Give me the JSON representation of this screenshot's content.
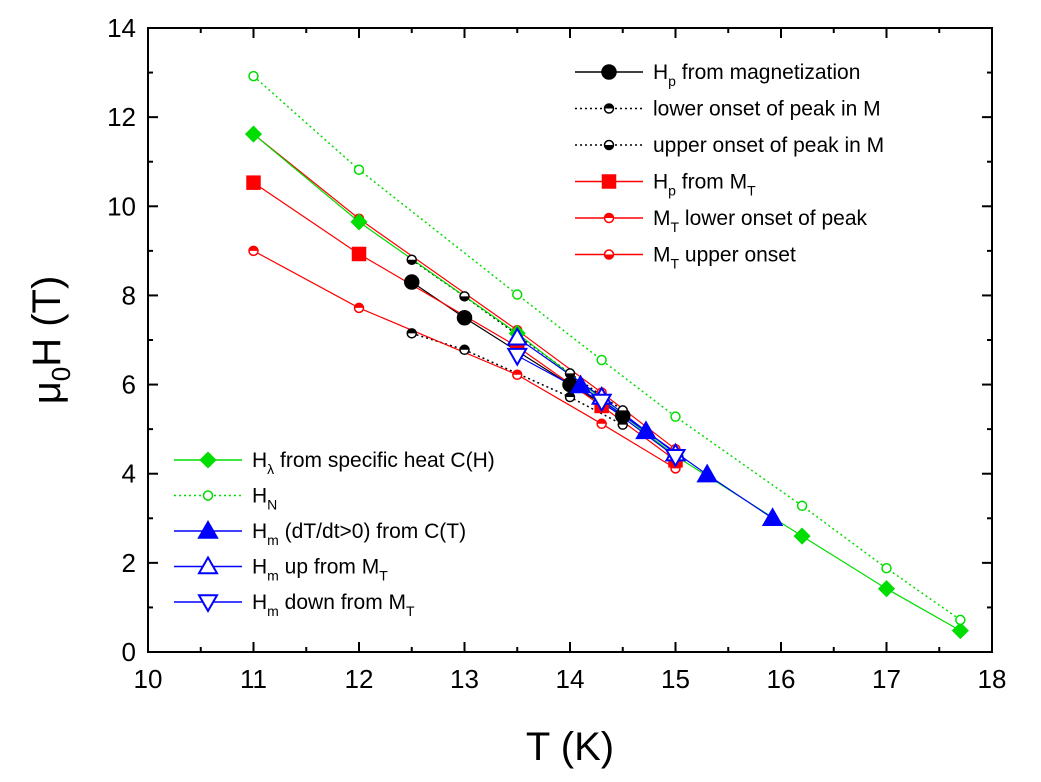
{
  "chart_data": {
    "type": "scatter",
    "xlabel": "T (K)",
    "ylabel": {
      "base": "μ",
      "sub": "0",
      "rest": "H (T)"
    },
    "xlim": [
      10,
      18
    ],
    "ylim": [
      0,
      14
    ],
    "xticks": [
      "10",
      "11",
      "12",
      "13",
      "14",
      "15",
      "16",
      "17",
      "18"
    ],
    "yticks": [
      "0",
      "2",
      "4",
      "6",
      "8",
      "10",
      "12",
      "14"
    ],
    "grid": false,
    "legend_placement": [
      "top-right",
      "bottom-left"
    ],
    "series": [
      {
        "legend": {
          "main": "H",
          "sub": "p",
          "rest": " from magnetization"
        },
        "color": "#000000",
        "line": "solid",
        "marker": "circle",
        "marker_size": "large",
        "fill": "full",
        "x": [
          12.5,
          13.0,
          14.0,
          14.5
        ],
        "y": [
          8.3,
          7.5,
          6.0,
          5.3
        ]
      },
      {
        "legend": {
          "main": "",
          "sub": "",
          "rest": "lower onset of peak in M"
        },
        "color": "#000000",
        "line": "dotted",
        "marker": "circle",
        "marker_size": "small",
        "fill": "bottom",
        "x": [
          12.5,
          13.0,
          14.0,
          14.5
        ],
        "y": [
          7.15,
          6.78,
          5.72,
          5.1
        ]
      },
      {
        "legend": {
          "main": "",
          "sub": "",
          "rest": "upper onset of peak in M"
        },
        "color": "#000000",
        "line": "dotted",
        "marker": "circle",
        "marker_size": "small",
        "fill": "top",
        "x": [
          12.5,
          13.0,
          14.0,
          14.5
        ],
        "y": [
          8.8,
          7.98,
          6.25,
          5.42
        ]
      },
      {
        "legend": {
          "main": "H",
          "sub": "p",
          "rest": " from M",
          "sub2": "T"
        },
        "color": "#ff0000",
        "line": "solid",
        "marker": "square",
        "marker_size": "large",
        "fill": "full",
        "x": [
          11.0,
          12.0,
          13.5,
          14.3,
          15.0
        ],
        "y": [
          10.53,
          8.93,
          6.85,
          5.52,
          4.3
        ]
      },
      {
        "legend": {
          "main": "M",
          "sub": "T",
          "rest": " lower onset of peak"
        },
        "color": "#ff0000",
        "line": "solid",
        "marker": "circle",
        "marker_size": "small",
        "fill": "bottom",
        "x": [
          11.0,
          12.0,
          13.5,
          14.3,
          15.0
        ],
        "y": [
          9.0,
          7.72,
          6.22,
          5.12,
          4.12
        ]
      },
      {
        "legend": {
          "main": "M",
          "sub": "T",
          "rest": " upper onset"
        },
        "color": "#ff0000",
        "line": "solid",
        "marker": "circle",
        "marker_size": "small",
        "fill": "top",
        "x": [
          11.0,
          12.0,
          13.5,
          14.3,
          15.0
        ],
        "y": [
          11.62,
          9.72,
          7.22,
          5.82,
          4.55
        ]
      },
      {
        "legend": {
          "main": "H",
          "sub": "λ",
          "rest": " from specific heat C(H)"
        },
        "color": "#00dd00",
        "line": "solid",
        "marker": "diamond",
        "marker_size": "large",
        "fill": "full",
        "x": [
          11.0,
          12.0,
          13.5,
          14.3,
          15.0,
          16.2,
          17.0,
          17.7
        ],
        "y": [
          11.62,
          9.65,
          7.15,
          5.68,
          4.4,
          2.6,
          1.42,
          0.48
        ]
      },
      {
        "legend": {
          "main": "H",
          "sub": "N",
          "rest": ""
        },
        "color": "#00dd00",
        "line": "dotted",
        "marker": "circle",
        "marker_size": "small",
        "fill": "none",
        "x": [
          11.0,
          12.0,
          13.5,
          14.3,
          15.0,
          16.2,
          17.0,
          17.7
        ],
        "y": [
          12.92,
          10.82,
          8.02,
          6.55,
          5.28,
          3.28,
          1.88,
          0.72
        ]
      },
      {
        "legend": {
          "main": "H",
          "sub": "m",
          "rest": " (dT/dt>0) from C(T)"
        },
        "color": "#0000ff",
        "line": "solid",
        "marker": "triangle-up",
        "marker_size": "large",
        "fill": "full",
        "x": [
          14.1,
          14.72,
          15.3,
          15.92
        ],
        "y": [
          5.98,
          4.95,
          3.98,
          3.0
        ]
      },
      {
        "legend": {
          "main": "H",
          "sub": "m",
          "rest": " up from M",
          "sub2": "T"
        },
        "color": "#0000ff",
        "line": "solid",
        "marker": "triangle-up",
        "marker_size": "large",
        "fill": "none",
        "x": [
          13.5,
          14.3,
          15.0
        ],
        "y": [
          7.05,
          5.72,
          4.45
        ]
      },
      {
        "legend": {
          "main": "H",
          "sub": "m",
          "rest": " down from M",
          "sub2": "T"
        },
        "color": "#0000ff",
        "line": "solid",
        "marker": "triangle-down",
        "marker_size": "large",
        "fill": "none",
        "x": [
          13.5,
          14.3,
          15.0
        ],
        "y": [
          6.65,
          5.62,
          4.38
        ]
      }
    ],
    "legends": [
      {
        "placement": "top-right",
        "series_indices": [
          0,
          1,
          2,
          3,
          4,
          5
        ]
      },
      {
        "placement": "bottom-left",
        "series_indices": [
          6,
          7,
          8,
          9,
          10
        ]
      }
    ]
  }
}
